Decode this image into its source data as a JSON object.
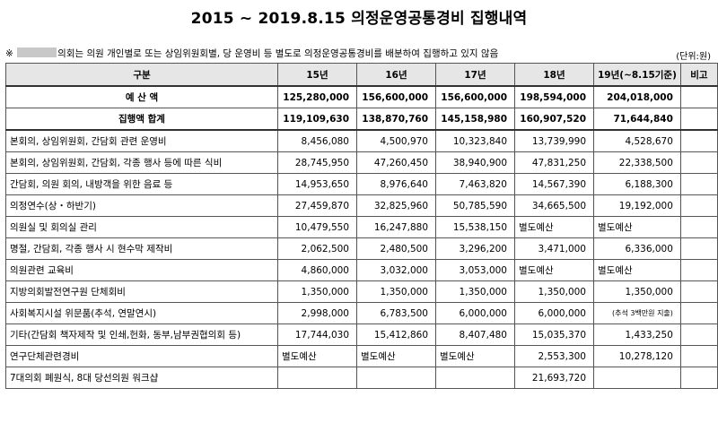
{
  "title": "2015 ~ 2019.8.15 의정운영공통경비 집행내역",
  "note_prefix": "※",
  "note_text": "의회는 의원 개인별로 또는 상임위원회별, 당 운영비 등 별도로 의정운영공통경비를 배분하여 집행하고 있지 않음",
  "unit": "(단위:원)",
  "headers": [
    "구분",
    "15년",
    "16년",
    "17년",
    "18년",
    "19년(~8.15기준)",
    "비고"
  ],
  "rows": [
    {
      "label": "예 산 액",
      "values": [
        "125,280,000",
        "156,600,000",
        "156,600,000",
        "198,594,000",
        "204,018,000",
        ""
      ]
    },
    {
      "label": "집행액 합계",
      "values": [
        "119,109,630",
        "138,870,760",
        "145,158,980",
        "160,907,520",
        "71,644,840",
        ""
      ]
    },
    {
      "label": "본회의, 상임위원회, 간담회 관련 운영비",
      "values": [
        "8,456,080",
        "4,500,970",
        "10,323,840",
        "13,739,990",
        "4,528,670",
        ""
      ]
    },
    {
      "label": "본회의, 상임위원회, 간담회, 각종 행사 등에 따른 식비",
      "values": [
        "28,745,950",
        "47,260,450",
        "38,940,900",
        "47,831,250",
        "22,338,500",
        ""
      ]
    },
    {
      "label": "간담회, 의원 회의, 내방객을 위한 음료 등",
      "values": [
        "14,953,650",
        "8,976,640",
        "7,463,820",
        "14,567,390",
        "6,188,300",
        ""
      ]
    },
    {
      "label": "의정연수(상・하반기)",
      "values": [
        "27,459,870",
        "32,825,960",
        "50,785,590",
        "34,665,500",
        "19,192,000",
        ""
      ]
    },
    {
      "label": "의원실 및 회의실 관리",
      "values": [
        "10,479,550",
        "16,247,880",
        "15,538,150",
        "별도예산",
        "별도예산",
        ""
      ]
    },
    {
      "label": "명절, 간담회, 각종 행사 시 현수막 제작비",
      "values": [
        "2,062,500",
        "2,480,500",
        "3,296,200",
        "3,471,000",
        "6,336,000",
        ""
      ]
    },
    {
      "label": "의원관련 교육비",
      "values": [
        "4,860,000",
        "3,032,000",
        "3,053,000",
        "별도예산",
        "별도예산",
        ""
      ]
    },
    {
      "label": "지방의회발전연구원 단체회비",
      "values": [
        "1,350,000",
        "1,350,000",
        "1,350,000",
        "1,350,000",
        "1,350,000",
        ""
      ]
    },
    {
      "label": "사회복지시설 위문품(추석, 연말연시)",
      "values": [
        "2,998,000",
        "6,783,500",
        "6,000,000",
        "6,000,000",
        "(추석 3백만원 지출)",
        ""
      ]
    },
    {
      "label": "기타(간담회 책자제작 및 인쇄,헌화, 동부,남부권협의회 등)",
      "values": [
        "17,744,030",
        "15,412,860",
        "8,407,480",
        "15,035,370",
        "1,433,250",
        ""
      ]
    },
    {
      "label": "연구단체관련경비",
      "values": [
        "별도예산",
        "별도예산",
        "별도예산",
        "2,553,300",
        "10,278,120",
        ""
      ]
    },
    {
      "label": "7대의회 폐원식, 8대 당선의원 워크샵",
      "values": [
        "",
        "",
        "",
        "21,693,720",
        "",
        ""
      ]
    }
  ]
}
